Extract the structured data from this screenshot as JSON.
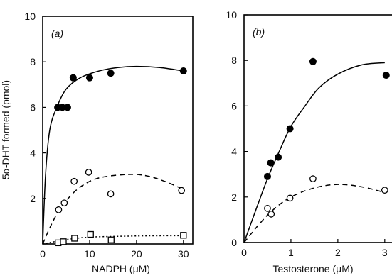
{
  "ylabel": "5α-DHT formed (pmol)",
  "chart_data": [
    {
      "type": "scatter",
      "panel_label": "(a)",
      "xlabel": "NADPH (μM)",
      "xlim": [
        0,
        32
      ],
      "ylim": [
        0,
        10
      ],
      "xticks": [
        0,
        10,
        20,
        30
      ],
      "yticks": [
        0,
        2,
        4,
        6,
        8,
        10
      ],
      "xtick_labels": [
        "0",
        "10",
        "20",
        "30"
      ],
      "ytick_labels": [
        "",
        "2",
        "4",
        "6",
        "8",
        "10"
      ],
      "series": [
        {
          "marker": "filled-circle",
          "line": "solid",
          "points": [
            [
              3.2,
              6.0
            ],
            [
              4.2,
              6.0
            ],
            [
              5.3,
              6.0
            ],
            [
              6.5,
              7.3
            ],
            [
              10,
              7.3
            ],
            [
              14.5,
              7.5
            ],
            [
              30,
              7.6
            ]
          ],
          "curve": [
            [
              0,
              0
            ],
            [
              0.6,
              3.0
            ],
            [
              1.5,
              5.0
            ],
            [
              3,
              6.0
            ],
            [
              5,
              6.8
            ],
            [
              8,
              7.3
            ],
            [
              12,
              7.6
            ],
            [
              16,
              7.75
            ],
            [
              20,
              7.8
            ],
            [
              25,
              7.75
            ],
            [
              30,
              7.6
            ]
          ]
        },
        {
          "marker": "open-circle",
          "line": "dashed",
          "points": [
            [
              3.4,
              1.5
            ],
            [
              4.6,
              1.8
            ],
            [
              6.7,
              2.75
            ],
            [
              9.8,
              3.15
            ],
            [
              14.5,
              2.2
            ],
            [
              29.6,
              2.35
            ]
          ],
          "curve": [
            [
              0,
              0
            ],
            [
              1.5,
              0.7
            ],
            [
              3,
              1.3
            ],
            [
              5,
              1.9
            ],
            [
              8,
              2.5
            ],
            [
              12,
              2.9
            ],
            [
              18,
              3.05
            ],
            [
              22,
              3.0
            ],
            [
              26,
              2.75
            ],
            [
              30,
              2.4
            ]
          ]
        },
        {
          "marker": "open-square",
          "line": "dotted",
          "points": [
            [
              3.3,
              0.05
            ],
            [
              4.4,
              0.1
            ],
            [
              6.8,
              0.25
            ],
            [
              10.2,
              0.42
            ],
            [
              14.6,
              0.18
            ],
            [
              30,
              0.38
            ]
          ],
          "curve": [
            [
              0,
              0
            ],
            [
              3,
              0.12
            ],
            [
              6,
              0.22
            ],
            [
              10,
              0.3
            ],
            [
              15,
              0.33
            ],
            [
              20,
              0.35
            ],
            [
              25,
              0.36
            ],
            [
              30,
              0.36
            ]
          ]
        }
      ]
    },
    {
      "type": "scatter",
      "panel_label": "(b)",
      "xlabel": "Testosterone (μM)",
      "xlim": [
        0,
        3.2
      ],
      "ylim": [
        0,
        10
      ],
      "xticks": [
        0,
        1,
        2,
        3
      ],
      "yticks": [
        0,
        2,
        4,
        6,
        8,
        10
      ],
      "xtick_labels": [
        "0",
        "1",
        "2",
        "3"
      ],
      "ytick_labels": [
        "0",
        "2",
        "4",
        "6",
        "8",
        "10"
      ],
      "series": [
        {
          "marker": "filled-circle",
          "line": "solid",
          "points": [
            [
              0.5,
              2.9
            ],
            [
              0.57,
              3.5
            ],
            [
              0.73,
              3.75
            ],
            [
              0.98,
              5.0
            ],
            [
              1.47,
              7.95
            ],
            [
              3.03,
              7.35
            ]
          ],
          "curve": [
            [
              0,
              0
            ],
            [
              0.3,
              1.7
            ],
            [
              0.5,
              2.8
            ],
            [
              0.75,
              4.0
            ],
            [
              1.0,
              5.1
            ],
            [
              1.3,
              6.0
            ],
            [
              1.6,
              6.8
            ],
            [
              2.0,
              7.4
            ],
            [
              2.5,
              7.8
            ],
            [
              3.0,
              7.9
            ]
          ]
        },
        {
          "marker": "open-circle",
          "line": "dashed",
          "points": [
            [
              0.5,
              1.5
            ],
            [
              0.58,
              1.25
            ],
            [
              0.98,
              1.95
            ],
            [
              1.47,
              2.8
            ],
            [
              3.0,
              2.3
            ]
          ],
          "curve": [
            [
              0,
              0
            ],
            [
              0.3,
              0.75
            ],
            [
              0.6,
              1.4
            ],
            [
              1.0,
              2.0
            ],
            [
              1.5,
              2.4
            ],
            [
              2.0,
              2.55
            ],
            [
              2.5,
              2.45
            ],
            [
              3.0,
              2.2
            ]
          ]
        }
      ]
    }
  ]
}
